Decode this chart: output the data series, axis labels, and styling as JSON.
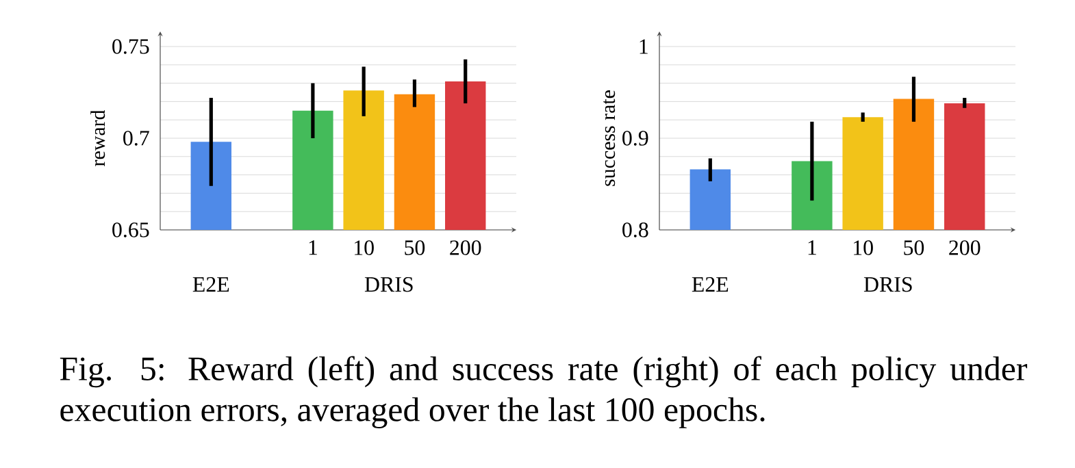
{
  "chart_data": [
    {
      "type": "bar",
      "ylabel": "reward",
      "categories": [
        "E2E",
        null,
        "1",
        "10",
        "50",
        "200"
      ],
      "values": [
        0.698,
        null,
        0.715,
        0.726,
        0.724,
        0.731
      ],
      "errors": [
        [
          0.674,
          0.722
        ],
        null,
        [
          0.7,
          0.73
        ],
        [
          0.712,
          0.739
        ],
        [
          0.717,
          0.732
        ],
        [
          0.719,
          0.743
        ]
      ],
      "colors": [
        "#4f8ae8",
        null,
        "#44bb5a",
        "#f2c319",
        "#fb8c0f",
        "#db3b40"
      ],
      "ylim": [
        0.65,
        0.75
      ],
      "yticks": [
        0.65,
        {
          "value": 0.66,
          "label": null
        },
        {
          "value": 0.67,
          "label": null
        },
        {
          "value": 0.68,
          "label": null
        },
        {
          "value": 0.69,
          "label": null
        },
        0.7,
        {
          "value": 0.71,
          "label": null
        },
        {
          "value": 0.72,
          "label": null
        },
        {
          "value": 0.73,
          "label": null
        },
        {
          "value": 0.74,
          "label": null
        },
        0.75
      ],
      "grid": "y",
      "annotations": [
        "DRIS",
        "Fig. 5: Reward (left) and success rate (right) of each policy under execution errors, averaged over the last 100 epochs."
      ]
    },
    {
      "type": "bar",
      "ylabel": "success rate",
      "categories": [
        "E2E",
        null,
        "1",
        "10",
        "50",
        "200"
      ],
      "values": [
        0.866,
        null,
        0.875,
        0.923,
        0.943,
        0.938
      ],
      "errors": [
        [
          0.853,
          0.878
        ],
        null,
        [
          0.832,
          0.918
        ],
        [
          0.918,
          0.928
        ],
        [
          0.918,
          0.967
        ],
        [
          0.933,
          0.944
        ]
      ],
      "colors": [
        "#4f8ae8",
        null,
        "#44bb5a",
        "#f2c319",
        "#fb8c0f",
        "#db3b40"
      ],
      "ylim": [
        0.8,
        1
      ],
      "yticks": [
        0.8,
        {
          "value": 0.82,
          "label": null
        },
        {
          "value": 0.84,
          "label": null
        },
        {
          "value": 0.86,
          "label": null
        },
        {
          "value": 0.88,
          "label": null
        },
        0.9,
        {
          "value": 0.92,
          "label": null
        },
        {
          "value": 0.94,
          "label": null
        },
        {
          "value": 0.96,
          "label": null
        },
        {
          "value": 0.98,
          "label": null
        },
        1
      ],
      "grid": "y",
      "annotations": [
        "DRIS"
      ]
    }
  ]
}
